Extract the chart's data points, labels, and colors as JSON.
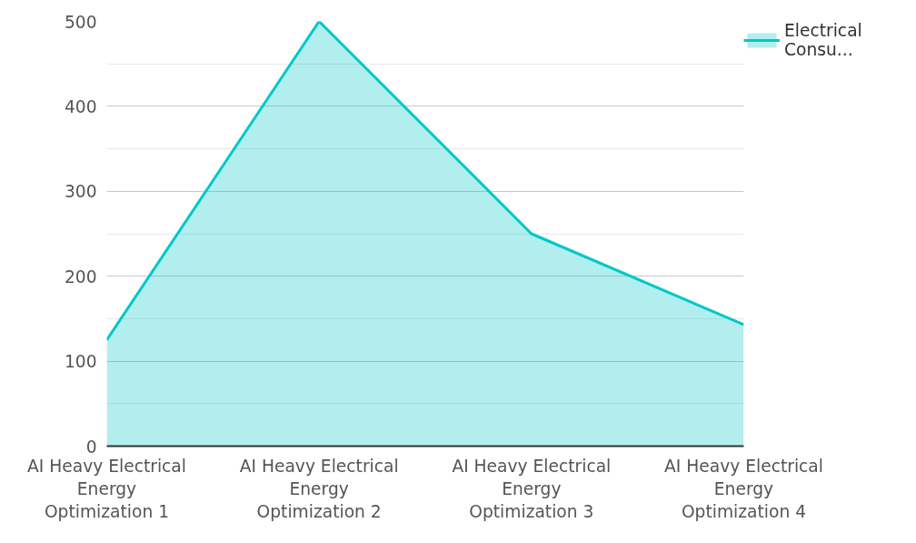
{
  "chart_data": {
    "type": "area",
    "categories": [
      "AI Heavy Electrical Energy Optimization 1",
      "AI Heavy Electrical Energy Optimization 2",
      "AI Heavy Electrical Energy Optimization 3",
      "AI Heavy Electrical Energy Optimization 4"
    ],
    "series": [
      {
        "name": "Electrical Consu...",
        "color": "#00c8c8",
        "values": [
          125,
          500,
          250,
          143
        ]
      }
    ],
    "ylim": [
      0,
      500
    ],
    "yticks": [
      0,
      100,
      200,
      300,
      400,
      500
    ],
    "grid": "y",
    "legend": "top right"
  }
}
